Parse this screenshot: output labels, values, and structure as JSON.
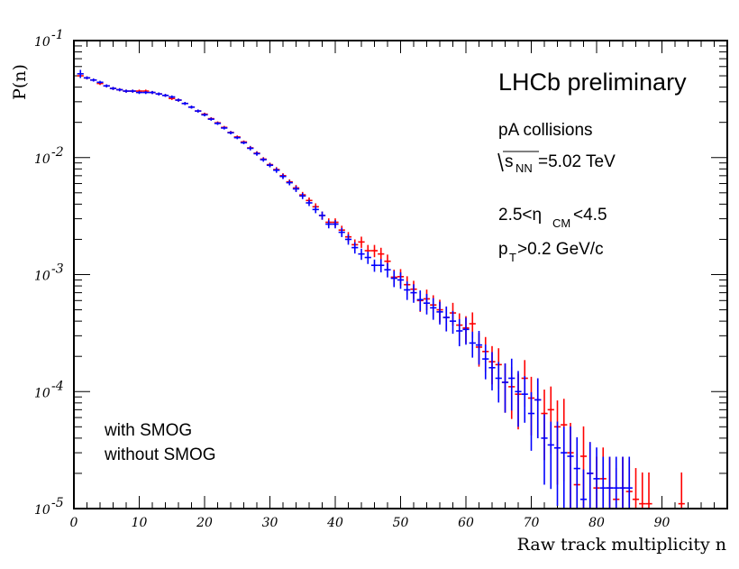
{
  "chart_data": {
    "type": "scatter",
    "title": "",
    "xlabel": "Raw track multiplicity n",
    "ylabel": "P(n)",
    "xlim": [
      0,
      100
    ],
    "ylim": [
      1e-05,
      0.1
    ],
    "yscale": "log",
    "grid": false,
    "legend_placement": "bottom-left",
    "x_ticks": [
      "0",
      "10",
      "20",
      "30",
      "40",
      "50",
      "60",
      "70",
      "80",
      "90"
    ],
    "y_ticks": [
      {
        "value": 1e-05,
        "base": "10",
        "exp": "-5"
      },
      {
        "value": 0.0001,
        "base": "10",
        "exp": "-4"
      },
      {
        "value": 0.001,
        "base": "10",
        "exp": "-3"
      },
      {
        "value": 0.01,
        "base": "10",
        "exp": "-2"
      },
      {
        "value": 0.1,
        "base": "10",
        "exp": "-1"
      }
    ],
    "annotations": {
      "experiment": "LHCb preliminary",
      "system": "pA collisions",
      "energy_prefix": "s",
      "energy_sub": "NN",
      "energy_value": "=5.02 TeV",
      "eta_prefix": "2.5<η",
      "eta_sub": "CM",
      "eta_suffix": "<4.5",
      "pt_prefix": "p",
      "pt_sub": "T",
      "pt_suffix": ">0.2 GeV/c"
    },
    "series": [
      {
        "name": "with SMOG",
        "color": "#ff0000",
        "x": [
          1,
          2,
          3,
          4,
          5,
          6,
          7,
          8,
          9,
          10,
          11,
          12,
          13,
          14,
          15,
          16,
          17,
          18,
          19,
          20,
          21,
          22,
          23,
          24,
          25,
          26,
          27,
          28,
          29,
          30,
          31,
          32,
          33,
          34,
          35,
          36,
          37,
          38,
          39,
          40,
          41,
          42,
          43,
          44,
          45,
          46,
          47,
          48,
          49,
          50,
          51,
          52,
          53,
          54,
          55,
          56,
          57,
          58,
          59,
          60,
          61,
          62,
          63,
          64,
          65,
          66,
          67,
          68,
          69,
          70,
          71,
          72,
          73,
          74,
          75,
          76,
          77,
          78,
          79,
          80,
          81,
          82,
          83,
          84,
          85,
          86,
          87,
          88,
          93
        ],
        "y": [
          0.05,
          0.048,
          0.046,
          0.043,
          0.041,
          0.039,
          0.038,
          0.037,
          0.037,
          0.037,
          0.037,
          0.036,
          0.035,
          0.034,
          0.032,
          0.031,
          0.029,
          0.027,
          0.025,
          0.0235,
          0.0215,
          0.0198,
          0.0181,
          0.0164,
          0.015,
          0.0136,
          0.0121,
          0.0109,
          0.0097,
          0.0087,
          0.0079,
          0.007,
          0.0062,
          0.0055,
          0.0048,
          0.0043,
          0.0038,
          0.0032,
          0.0028,
          0.0028,
          0.0024,
          0.0021,
          0.0018,
          0.0019,
          0.0016,
          0.0016,
          0.0015,
          0.0013,
          0.00095,
          0.00096,
          0.00082,
          0.00075,
          0.0006,
          0.00062,
          0.00055,
          0.0005,
          0.00043,
          0.00047,
          0.00037,
          0.00035,
          0.00038,
          0.00024,
          0.00022,
          0.00018,
          0.00017,
          0.00012,
          0.00011,
          9.5e-05,
          0.00013,
          8.8e-05,
          8.5e-05,
          6.5e-05,
          7e-05,
          5e-05,
          5.2e-05,
          3e-05,
          1.6e-05,
          2.8e-05,
          2e-05,
          1.5e-05,
          1.8e-05,
          1.5e-05,
          1.2e-05,
          1.5e-05,
          1.4e-05,
          1.2e-05,
          1.1e-05,
          1.1e-05,
          1.1e-05
        ],
        "yerr_frac": [
          0.03,
          0.03,
          0.03,
          0.03,
          0.03,
          0.03,
          0.03,
          0.03,
          0.03,
          0.03,
          0.03,
          0.03,
          0.03,
          0.03,
          0.03,
          0.03,
          0.03,
          0.03,
          0.03,
          0.03,
          0.03,
          0.03,
          0.03,
          0.03,
          0.03,
          0.03,
          0.04,
          0.04,
          0.04,
          0.04,
          0.05,
          0.05,
          0.05,
          0.06,
          0.06,
          0.06,
          0.07,
          0.08,
          0.08,
          0.08,
          0.09,
          0.1,
          0.11,
          0.11,
          0.12,
          0.12,
          0.13,
          0.14,
          0.16,
          0.16,
          0.18,
          0.18,
          0.2,
          0.2,
          0.21,
          0.22,
          0.24,
          0.22,
          0.26,
          0.26,
          0.25,
          0.32,
          0.33,
          0.36,
          0.38,
          0.45,
          0.47,
          0.5,
          0.43,
          0.52,
          0.53,
          0.6,
          0.58,
          0.68,
          0.67,
          0.8,
          0.85,
          0.8,
          0.85,
          0.85,
          0.85,
          0.85,
          0.85,
          0.85,
          0.85,
          0.85,
          0.85,
          0.85,
          0.85
        ]
      },
      {
        "name": "without SMOG",
        "color": "#0000ff",
        "x": [
          1,
          2,
          3,
          4,
          5,
          6,
          7,
          8,
          9,
          10,
          11,
          12,
          13,
          14,
          15,
          16,
          17,
          18,
          19,
          20,
          21,
          22,
          23,
          24,
          25,
          26,
          27,
          28,
          29,
          30,
          31,
          32,
          33,
          34,
          35,
          36,
          37,
          38,
          39,
          40,
          41,
          42,
          43,
          44,
          45,
          46,
          47,
          48,
          49,
          50,
          51,
          52,
          53,
          54,
          55,
          56,
          57,
          58,
          59,
          60,
          61,
          62,
          63,
          64,
          65,
          66,
          67,
          68,
          69,
          70,
          71,
          72,
          73,
          74,
          75,
          76,
          77,
          78,
          79,
          80,
          81,
          82,
          83,
          84,
          85
        ],
        "y": [
          0.052,
          0.048,
          0.046,
          0.044,
          0.041,
          0.039,
          0.038,
          0.037,
          0.037,
          0.036,
          0.036,
          0.036,
          0.035,
          0.034,
          0.033,
          0.031,
          0.029,
          0.027,
          0.025,
          0.0232,
          0.0213,
          0.0196,
          0.0179,
          0.0163,
          0.0148,
          0.0134,
          0.012,
          0.0108,
          0.0096,
          0.0086,
          0.0078,
          0.0069,
          0.0061,
          0.0054,
          0.0047,
          0.0041,
          0.0036,
          0.0032,
          0.0027,
          0.0027,
          0.0023,
          0.002,
          0.0017,
          0.0015,
          0.0014,
          0.0012,
          0.0012,
          0.0011,
          0.00093,
          0.0009,
          0.00074,
          0.0007,
          0.00061,
          0.00057,
          0.00052,
          0.00048,
          0.00043,
          0.0004,
          0.00033,
          0.00034,
          0.00026,
          0.00025,
          0.00019,
          0.00016,
          0.00013,
          0.00012,
          0.00013,
          0.0001,
          9.5e-05,
          6.5e-05,
          8.5e-05,
          4e-05,
          3.5e-05,
          3.3e-05,
          3e-05,
          2.8e-05,
          2.2e-05,
          1.2e-05,
          2e-05,
          1.8e-05,
          1.5e-05,
          1.5e-05,
          1.5e-05,
          1.5e-05,
          1.5e-05
        ],
        "yerr_frac": [
          0.08,
          0.03,
          0.03,
          0.03,
          0.03,
          0.03,
          0.03,
          0.03,
          0.03,
          0.03,
          0.03,
          0.03,
          0.03,
          0.03,
          0.03,
          0.03,
          0.03,
          0.03,
          0.03,
          0.03,
          0.03,
          0.03,
          0.03,
          0.03,
          0.03,
          0.03,
          0.04,
          0.04,
          0.04,
          0.04,
          0.05,
          0.05,
          0.05,
          0.06,
          0.06,
          0.06,
          0.07,
          0.08,
          0.08,
          0.08,
          0.09,
          0.1,
          0.11,
          0.11,
          0.12,
          0.12,
          0.13,
          0.14,
          0.16,
          0.16,
          0.18,
          0.18,
          0.2,
          0.2,
          0.21,
          0.22,
          0.24,
          0.22,
          0.26,
          0.26,
          0.25,
          0.32,
          0.33,
          0.36,
          0.38,
          0.45,
          0.47,
          0.5,
          0.43,
          0.52,
          0.53,
          0.6,
          0.58,
          0.68,
          0.67,
          0.8,
          0.85,
          0.8,
          0.85,
          0.85,
          0.85,
          0.85,
          0.85,
          0.85,
          0.85
        ]
      }
    ]
  }
}
